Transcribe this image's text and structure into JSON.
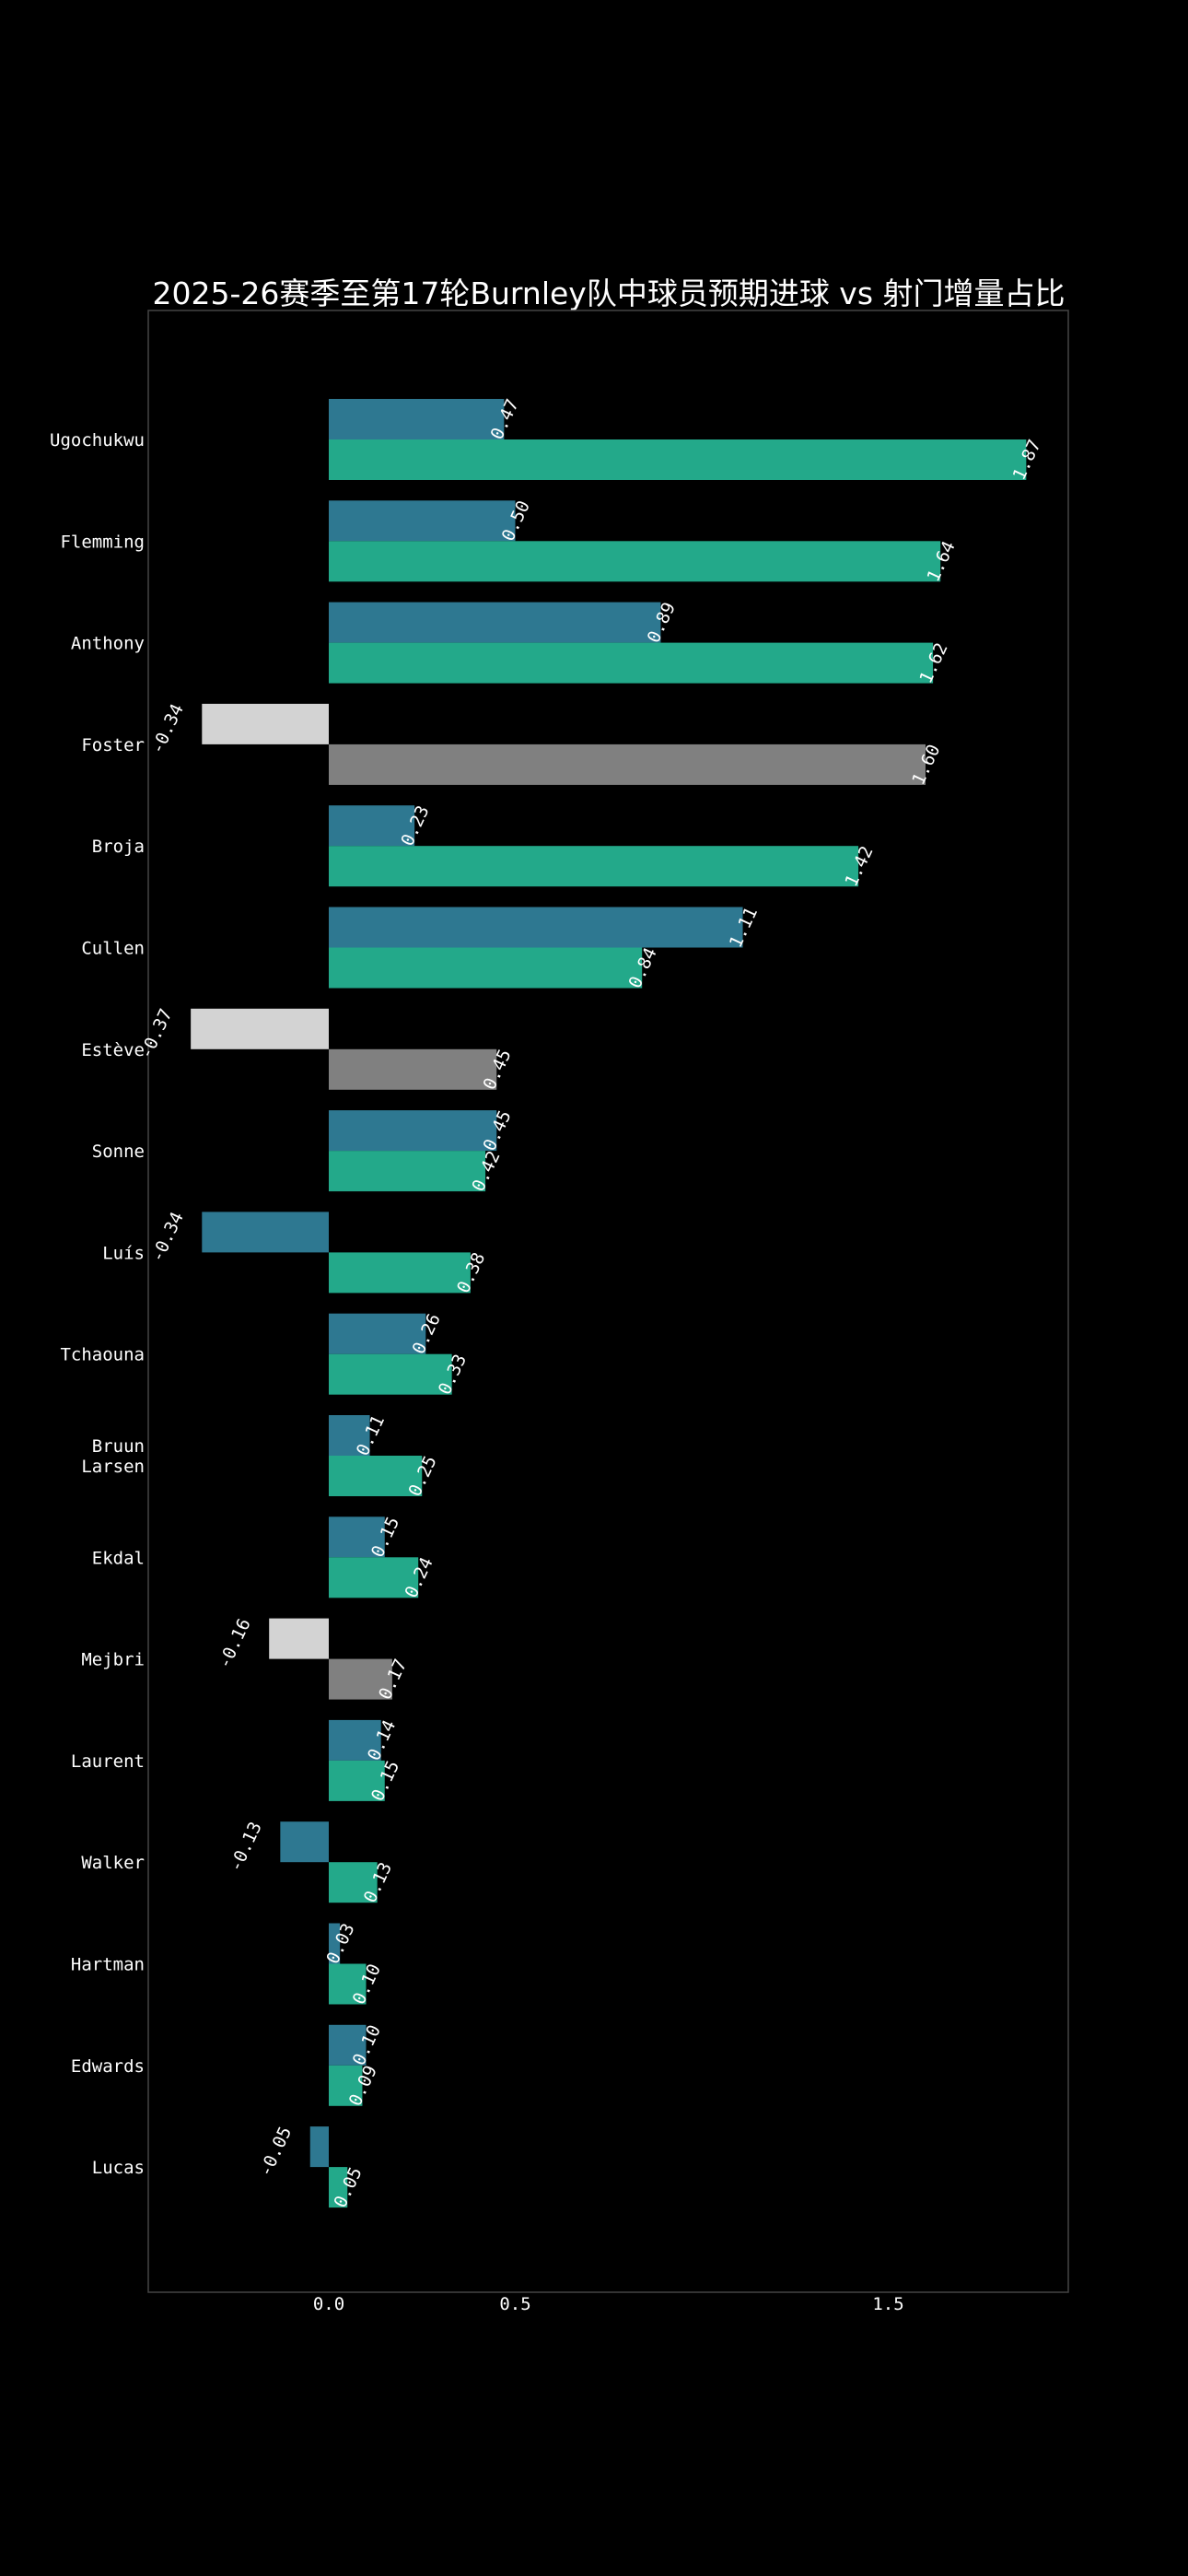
{
  "chart_data": {
    "type": "bar",
    "orientation": "horizontal",
    "title": "2025-26赛季至第17轮Burnley队中球员预期进球 vs 射门增量占比",
    "xlabel": "",
    "ylabel": "",
    "xlim": [
      -0.48,
      1.98
    ],
    "xticks": [
      0.0,
      0.5,
      1.5
    ],
    "xtick_labels": [
      "0.0",
      "0.5",
      "1.5"
    ],
    "grid": false,
    "legend": "none",
    "categories": [
      "Ugochukwu",
      "Flemming",
      "Anthony",
      "Foster",
      "Broja",
      "Cullen",
      "Estève",
      "Sonne",
      "Luís",
      "Tchaouna",
      "Bruun Larsen",
      "Ekdal",
      "Mejbri",
      "Laurent",
      "Walker",
      "Hartman",
      "Edwards",
      "Lucas"
    ],
    "category_lines": [
      [
        "Ugochukwu"
      ],
      [
        "Flemming"
      ],
      [
        "Anthony"
      ],
      [
        "Foster"
      ],
      [
        "Broja"
      ],
      [
        "Cullen"
      ],
      [
        "Estève"
      ],
      [
        "Sonne"
      ],
      [
        "Luís"
      ],
      [
        "Tchaouna"
      ],
      [
        "Bruun",
        "Larsen"
      ],
      [
        "Ekdal"
      ],
      [
        "Mejbri"
      ],
      [
        "Laurent"
      ],
      [
        "Walker"
      ],
      [
        "Hartman"
      ],
      [
        "Edwards"
      ],
      [
        "Lucas"
      ]
    ],
    "series": [
      {
        "values": [
          0.47,
          0.5,
          0.89,
          -0.34,
          0.23,
          1.11,
          -0.37,
          0.45,
          -0.34,
          0.26,
          0.11,
          0.15,
          -0.16,
          0.14,
          -0.13,
          0.03,
          0.1,
          -0.05
        ],
        "labels": [
          "0.47",
          "0.50",
          "0.89",
          "-0.34",
          "0.23",
          "1.11",
          "-0.37",
          "0.45",
          "-0.34",
          "0.26",
          "0.11",
          "0.15",
          "-0.16",
          "0.14",
          "-0.13",
          "0.03",
          "0.10",
          "-0.05"
        ]
      },
      {
        "values": [
          1.87,
          1.64,
          1.62,
          1.6,
          1.42,
          0.84,
          0.45,
          0.42,
          0.38,
          0.33,
          0.25,
          0.24,
          0.17,
          0.15,
          0.13,
          0.1,
          0.09,
          0.05
        ],
        "labels": [
          "1.87",
          "1.64",
          "1.62",
          "1.60",
          "1.42",
          "0.84",
          "0.45",
          "0.42",
          "0.38",
          "0.33",
          "0.25",
          "0.24",
          "0.17",
          "0.15",
          "0.13",
          "0.10",
          "0.09",
          "0.05"
        ]
      }
    ],
    "highlight_grey": [
      "Foster",
      "Estève",
      "Mejbri"
    ],
    "colors": {
      "series_1": "#2e7891",
      "series_2": "#23a98a",
      "series_1_grey": "#d3d3d3",
      "series_2_grey": "#808080",
      "background": "#000000",
      "frame": "#444444",
      "text": "#ffffff"
    }
  }
}
